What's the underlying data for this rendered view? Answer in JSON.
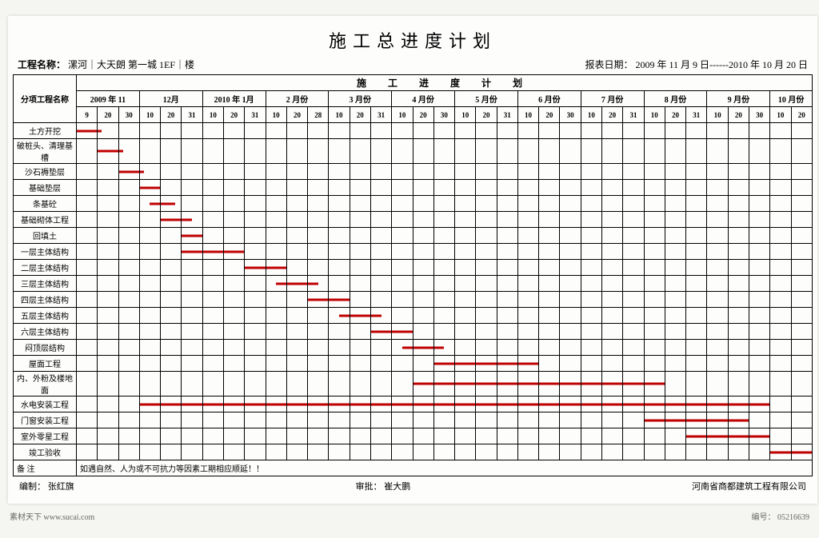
{
  "title": "施工总进度计划",
  "project_label": "工程名称：",
  "project_name": "漯河｜大天朗 第一城 1EF｜楼",
  "report_label": "报表日期：",
  "report_date": "2009 年 11 月 9 日------2010 年 10 月 20 日",
  "group_header": "施 工 进 度 计 划",
  "task_header": "分项工程名称",
  "months": [
    {
      "label": "2009 年 11",
      "days": [
        "9",
        "20",
        "30"
      ]
    },
    {
      "label": "12月",
      "days": [
        "10",
        "20",
        "31"
      ]
    },
    {
      "label": "2010 年 1月",
      "days": [
        "10",
        "20",
        "31"
      ]
    },
    {
      "label": "2 月份",
      "days": [
        "10",
        "20",
        "28"
      ]
    },
    {
      "label": "3 月份",
      "days": [
        "10",
        "20",
        "31"
      ]
    },
    {
      "label": "4 月份",
      "days": [
        "10",
        "20",
        "30"
      ]
    },
    {
      "label": "5 月份",
      "days": [
        "10",
        "20",
        "31"
      ]
    },
    {
      "label": "6 月份",
      "days": [
        "10",
        "20",
        "30"
      ]
    },
    {
      "label": "7 月份",
      "days": [
        "10",
        "20",
        "31"
      ]
    },
    {
      "label": "8 月份",
      "days": [
        "10",
        "20",
        "31"
      ]
    },
    {
      "label": "9 月份",
      "days": [
        "10",
        "20",
        "30"
      ]
    },
    {
      "label": "10 月份",
      "days": [
        "10",
        "20"
      ]
    }
  ],
  "tasks": [
    {
      "name": "土方开挖",
      "start": 0,
      "span": 1.2
    },
    {
      "name": "破桩头、清理基槽",
      "start": 1,
      "span": 1.2
    },
    {
      "name": "沙石褥垫层",
      "start": 2,
      "span": 1.2
    },
    {
      "name": "基础垫层",
      "start": 3,
      "span": 1
    },
    {
      "name": "条基砼",
      "start": 3.5,
      "span": 1.2
    },
    {
      "name": "基础砌体工程",
      "start": 4,
      "span": 1.5
    },
    {
      "name": "回填土",
      "start": 5,
      "span": 1
    },
    {
      "name": "一层主体结构",
      "start": 5,
      "span": 3
    },
    {
      "name": "二层主体结构",
      "start": 8,
      "span": 2
    },
    {
      "name": "三层主体结构",
      "start": 9.5,
      "span": 2
    },
    {
      "name": "四层主体结构",
      "start": 11,
      "span": 2
    },
    {
      "name": "五层主体结构",
      "start": 12.5,
      "span": 2
    },
    {
      "name": "六层主体结构",
      "start": 14,
      "span": 2
    },
    {
      "name": "闷顶层结构",
      "start": 15.5,
      "span": 2
    },
    {
      "name": "屋面工程",
      "start": 17,
      "span": 5
    },
    {
      "name": "内、外粉及楼地面",
      "start": 16,
      "span": 12
    },
    {
      "name": "水电安装工程",
      "start": 3,
      "span": 30
    },
    {
      "name": "门窗安装工程",
      "start": 27,
      "span": 5
    },
    {
      "name": "室外零星工程",
      "start": 29,
      "span": 4
    },
    {
      "name": "竣工验收",
      "start": 33,
      "span": 2
    }
  ],
  "notes_label": "备 注",
  "notes_text": "如遇自然、人为或不可抗力等因素工期相应顺延！！",
  "footer_author_label": "编制：",
  "footer_author": "张红旗",
  "footer_approve_label": "审批：",
  "footer_approve": "崔大鹏",
  "footer_company": "河南省商都建筑工程有限公司",
  "source_label": "素材天下  www.sucai.com",
  "serial_label": "编号：",
  "serial": "05216639",
  "bar_color": "#c00000"
}
